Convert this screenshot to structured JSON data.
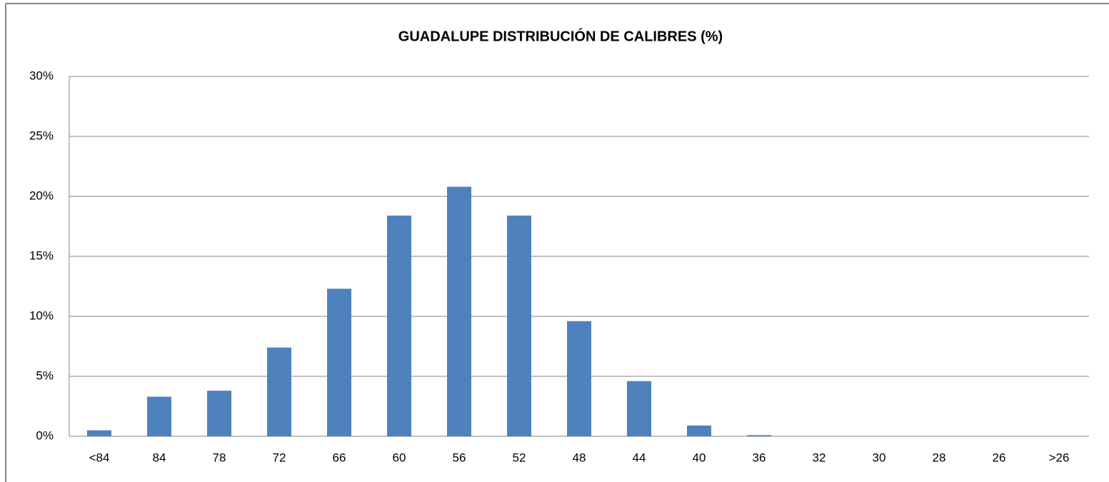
{
  "chart_data": {
    "type": "bar",
    "title": "GUADALUPE DISTRIBUCIÓN DE CALIBRES (%)",
    "categories": [
      "<84",
      "84",
      "78",
      "72",
      "66",
      "60",
      "56",
      "52",
      "48",
      "44",
      "40",
      "36",
      "32",
      "30",
      "28",
      "26",
      ">26"
    ],
    "values": [
      0.5,
      3.3,
      3.8,
      7.4,
      12.3,
      18.4,
      20.8,
      18.4,
      9.6,
      4.6,
      0.9,
      0.1,
      0,
      0,
      0,
      0,
      0
    ],
    "color": "#4f81bd",
    "ylim": [
      0,
      30
    ],
    "yticks": [
      {
        "value": 0,
        "label": "0%"
      },
      {
        "value": 5,
        "label": "5%"
      },
      {
        "value": 10,
        "label": "10%"
      },
      {
        "value": 15,
        "label": "15%"
      },
      {
        "value": 20,
        "label": "20%"
      },
      {
        "value": 25,
        "label": "25%"
      },
      {
        "value": 30,
        "label": "30%"
      }
    ],
    "grid": true
  }
}
